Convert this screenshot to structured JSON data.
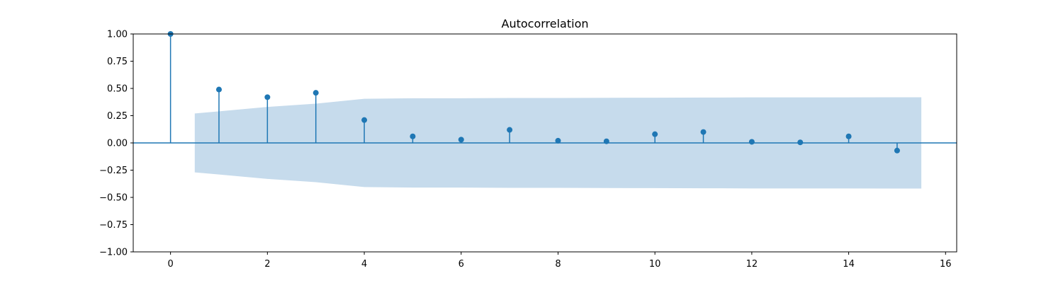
{
  "chart_data": {
    "type": "stem",
    "title": "Autocorrelation",
    "xlabel": "",
    "ylabel": "",
    "xlim": [
      -0.77,
      16.23
    ],
    "ylim": [
      -1.0,
      1.0
    ],
    "x_ticks": [
      0,
      2,
      4,
      6,
      8,
      10,
      12,
      14,
      16
    ],
    "y_ticks": [
      -1.0,
      -0.75,
      -0.5,
      -0.25,
      0.0,
      0.25,
      0.5,
      0.75,
      1.0
    ],
    "x_tick_labels": [
      "0",
      "2",
      "4",
      "6",
      "8",
      "10",
      "12",
      "14",
      "16"
    ],
    "y_tick_labels": [
      "−1.00",
      "−0.75",
      "−0.50",
      "−0.25",
      "0.00",
      "0.25",
      "0.50",
      "0.75",
      "1.00"
    ],
    "grid": false,
    "lags": [
      0,
      1,
      2,
      3,
      4,
      5,
      6,
      7,
      8,
      9,
      10,
      11,
      12,
      13,
      14,
      15
    ],
    "values": [
      1.0,
      0.49,
      0.42,
      0.46,
      0.21,
      0.06,
      0.03,
      0.12,
      0.02,
      0.015,
      0.08,
      0.1,
      0.01,
      0.005,
      0.06,
      -0.07
    ],
    "confidence_band": {
      "x": [
        0.5,
        1,
        2,
        3,
        4,
        5,
        6,
        7,
        8,
        9,
        10,
        11,
        12,
        13,
        14,
        15,
        15.5
      ],
      "upper": [
        0.27,
        0.29,
        0.33,
        0.36,
        0.405,
        0.41,
        0.41,
        0.412,
        0.412,
        0.414,
        0.415,
        0.416,
        0.418,
        0.418,
        0.418,
        0.419,
        0.419
      ]
    },
    "colors": {
      "stem": "#1f77b4",
      "band": "#c6dbec",
      "axis": "#000000"
    }
  }
}
